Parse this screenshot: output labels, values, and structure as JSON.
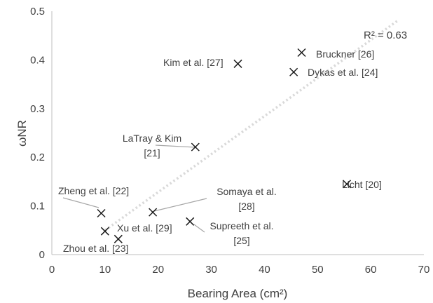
{
  "chart_data": {
    "type": "scatter",
    "title": "",
    "xlabel": "Bearing Area (cm²)",
    "ylabel": "ωNR",
    "xlim": [
      0,
      70
    ],
    "ylim": [
      0,
      0.5
    ],
    "xticks": [
      0,
      10,
      20,
      30,
      40,
      50,
      60,
      70
    ],
    "yticks": [
      0,
      0.1,
      0.2,
      0.3,
      0.4,
      0.5
    ],
    "grid": false,
    "legend": "none",
    "marker": "x",
    "marker_color": "#1a1a1a",
    "trendline": {
      "type": "linear",
      "style": "dotted",
      "color": "#d9d9d9",
      "label": "R² = 0.63",
      "x_range": [
        10,
        65
      ],
      "y_range": [
        0.05,
        0.48
      ]
    },
    "points": [
      {
        "label": "Kim et al. [27]",
        "x": 35.0,
        "y": 0.392
      },
      {
        "label": "Bruckner [26]",
        "x": 47.0,
        "y": 0.415
      },
      {
        "label": "Dykas et al. [24]",
        "x": 45.5,
        "y": 0.375
      },
      {
        "label": "LaTray & Kim [21]",
        "x": 27.0,
        "y": 0.221
      },
      {
        "label": "Licht [20]",
        "x": 55.5,
        "y": 0.145
      },
      {
        "label": "Zheng et al. [22]",
        "x": 9.3,
        "y": 0.085
      },
      {
        "label": "Somaya et al. [28]",
        "x": 19.0,
        "y": 0.087
      },
      {
        "label": "Supreeth et al. [25]",
        "x": 26.0,
        "y": 0.068
      },
      {
        "label": "Xu et al. [29]",
        "x": 10.0,
        "y": 0.048
      },
      {
        "label": "Zhou et al. [23]",
        "x": 12.5,
        "y": 0.032
      }
    ]
  }
}
